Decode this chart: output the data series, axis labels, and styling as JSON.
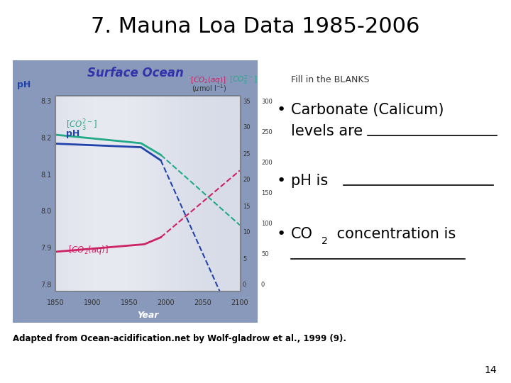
{
  "title": "7. Mauna Loa Data 1985-2006",
  "title_fontsize": 22,
  "title_color": "#000000",
  "background_color": "#ffffff",
  "fill_in_blanks_label": "Fill in the BLANKS",
  "adapted_text": "Adapted from Ocean-acidification.net by Wolf-gladrow et al., 1999 (9).",
  "page_number": "14",
  "blank_line_color": "#000000",
  "bullet_color": "#000000",
  "fill_in_color": "#000000",
  "graph_outer_bg": "#8899bb",
  "graph_inner_bg_left": "#e8e8f0",
  "graph_inner_bg_right": "#b0b8cc",
  "ph_color": "#2244aa",
  "co3_color": "#22aa88",
  "co2aq_color": "#cc2266",
  "surface_ocean_color": "#3333aa",
  "co2aq_label_color": "#cc2266",
  "co3_label_color": "#22aa88"
}
